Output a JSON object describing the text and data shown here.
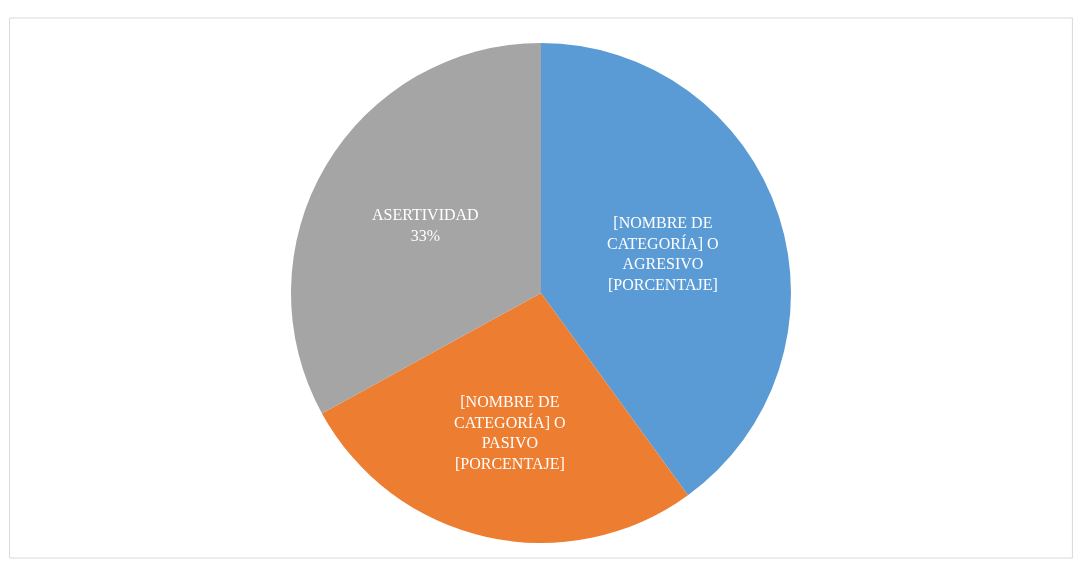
{
  "chart_data": {
    "type": "pie",
    "categories": [
      "[NOMBRE DE CATEGORÍA] O AGRESIVO",
      "[NOMBRE DE CATEGORÍA] O PASIVO",
      "ASERTIVIDAD"
    ],
    "values": [
      40,
      27,
      33
    ],
    "value_labels": [
      "[PORCENTAJE]",
      "[PORCENTAJE]",
      "33%"
    ],
    "colors": [
      "#5b9bd5",
      "#ed7d31",
      "#a5a5a5"
    ],
    "legend": false
  }
}
